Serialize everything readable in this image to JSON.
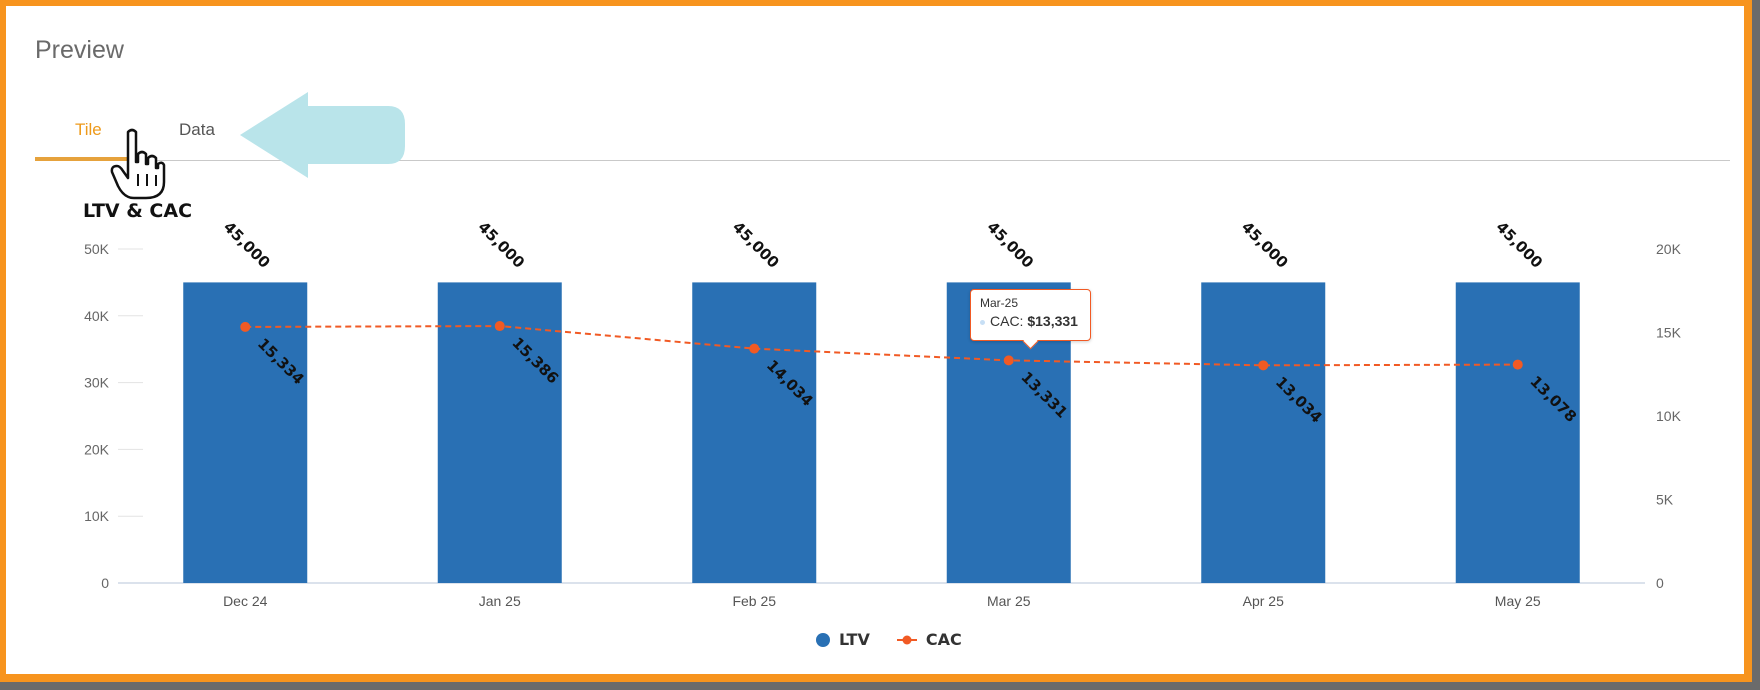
{
  "panel": {
    "title": "Preview"
  },
  "tabs": [
    {
      "label": "Tile",
      "active": true
    },
    {
      "label": "Data",
      "active": false
    }
  ],
  "colors": {
    "accent": "#ee9a1b",
    "ltv": "#2970b4",
    "cac": "#f15a24",
    "frame": "#f7941e",
    "hint_arrow": "#b9e4ea"
  },
  "icons": {
    "cursor": "hand-pointer-icon",
    "hint": "left-arrow-icon"
  },
  "chart_data": {
    "type": "bar",
    "title": "LTV & CAC",
    "categories": [
      "Dec 24",
      "Jan 25",
      "Feb 25",
      "Mar 25",
      "Apr 25",
      "May 25"
    ],
    "series": [
      {
        "name": "LTV",
        "type": "bar",
        "axis": "left",
        "values": [
          45000,
          45000,
          45000,
          45000,
          45000,
          45000
        ],
        "labels": [
          "45,000",
          "45,000",
          "45,000",
          "45,000",
          "45,000",
          "45,000"
        ]
      },
      {
        "name": "CAC",
        "type": "line",
        "axis": "right",
        "values": [
          15334,
          15386,
          14034,
          13331,
          13034,
          13078
        ],
        "labels": [
          "15,334",
          "15,386",
          "14,034",
          "13,331",
          "13,034",
          "13,078"
        ]
      }
    ],
    "y_left": {
      "ylim": [
        0,
        50000
      ],
      "ticks": [
        "0",
        "10K",
        "20K",
        "30K",
        "40K",
        "50K"
      ]
    },
    "y_right": {
      "ylim": [
        0,
        20000
      ],
      "ticks": [
        "0",
        "5K",
        "10K",
        "15K",
        "20K"
      ]
    },
    "legend": "bottom-center",
    "tooltip": {
      "date": "Mar-25",
      "series": "CAC",
      "label": "CAC:",
      "value": "$13,331"
    }
  }
}
